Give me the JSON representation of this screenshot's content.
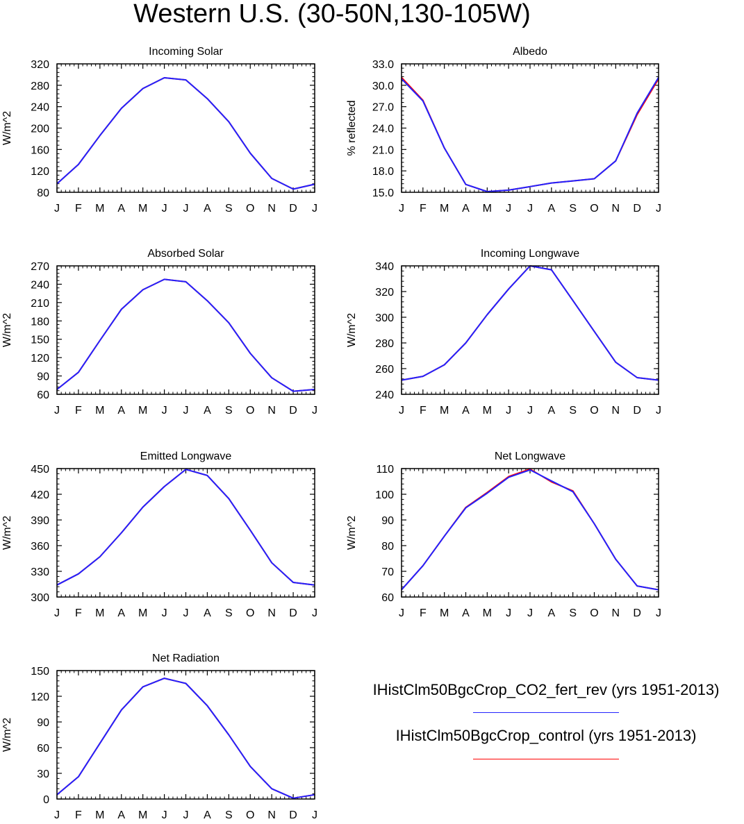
{
  "figure": {
    "title": "Western U.S. (30-50N,130-105W)"
  },
  "legend": [
    {
      "label": "IHistClm50BgcCrop_CO2_fert_rev (yrs 1951-2013)",
      "color": "#2222ff"
    },
    {
      "label": "IHistClm50BgcCrop_control (yrs 1951-2013)",
      "color": "#ff0000"
    }
  ],
  "chart_data": [
    {
      "type": "line",
      "title": "Incoming Solar",
      "ylabel": "W/m^2",
      "xlabel": "",
      "categories": [
        "J",
        "F",
        "M",
        "A",
        "M",
        "J",
        "J",
        "A",
        "S",
        "O",
        "N",
        "D",
        "J"
      ],
      "ylim": [
        80,
        320
      ],
      "yticks": [
        "80",
        "120",
        "160",
        "200",
        "240",
        "280",
        "320"
      ],
      "series": [
        {
          "color": "#ff0000",
          "values": [
            96,
            132,
            186,
            237,
            274,
            294,
            290,
            255,
            212,
            153,
            106,
            86,
            95
          ]
        },
        {
          "color": "#2222ff",
          "values": [
            96,
            132,
            186,
            237,
            274,
            294,
            290,
            255,
            212,
            153,
            106,
            86,
            95
          ]
        }
      ]
    },
    {
      "type": "line",
      "title": "Albedo",
      "ylabel": "% reflected",
      "xlabel": "",
      "categories": [
        "J",
        "F",
        "M",
        "A",
        "M",
        "J",
        "J",
        "A",
        "S",
        "O",
        "N",
        "D",
        "J"
      ],
      "ylim": [
        15,
        33
      ],
      "yticks": [
        "15.0",
        "18.0",
        "21.0",
        "24.0",
        "27.0",
        "30.0",
        "33.0"
      ],
      "series": [
        {
          "color": "#ff0000",
          "values": [
            31.1,
            27.9,
            21.2,
            16.1,
            15.1,
            15.3,
            15.8,
            16.3,
            16.6,
            16.9,
            19.4,
            25.9,
            30.9
          ]
        },
        {
          "color": "#2222ff",
          "values": [
            30.9,
            27.8,
            21.2,
            16.1,
            15.1,
            15.3,
            15.8,
            16.3,
            16.6,
            16.9,
            19.4,
            26.1,
            31.1
          ]
        }
      ]
    },
    {
      "type": "line",
      "title": "Absorbed Solar",
      "ylabel": "W/m^2",
      "xlabel": "",
      "categories": [
        "J",
        "F",
        "M",
        "A",
        "M",
        "J",
        "J",
        "A",
        "S",
        "O",
        "N",
        "D",
        "J"
      ],
      "ylim": [
        60,
        270
      ],
      "yticks": [
        "60",
        "90",
        "120",
        "150",
        "180",
        "210",
        "240",
        "270"
      ],
      "series": [
        {
          "color": "#ff0000",
          "values": [
            68,
            96,
            148,
            199,
            231,
            248,
            244,
            213,
            177,
            127,
            87,
            65,
            68
          ]
        },
        {
          "color": "#2222ff",
          "values": [
            68,
            96,
            148,
            199,
            231,
            248,
            244,
            213,
            177,
            127,
            87,
            65,
            68
          ]
        }
      ]
    },
    {
      "type": "line",
      "title": "Incoming Longwave",
      "ylabel": "W/m^2",
      "xlabel": "",
      "categories": [
        "J",
        "F",
        "M",
        "A",
        "M",
        "J",
        "J",
        "A",
        "S",
        "O",
        "N",
        "D",
        "J"
      ],
      "ylim": [
        240,
        340
      ],
      "yticks": [
        "240",
        "260",
        "280",
        "300",
        "320",
        "340"
      ],
      "series": [
        {
          "color": "#ff0000",
          "values": [
            251,
            254,
            263,
            280,
            302,
            322,
            340,
            337,
            313,
            289,
            265,
            253,
            251
          ]
        },
        {
          "color": "#2222ff",
          "values": [
            251,
            254,
            263,
            280,
            302,
            322,
            340,
            337,
            313,
            289,
            265,
            253,
            251
          ]
        }
      ]
    },
    {
      "type": "line",
      "title": "Emitted Longwave",
      "ylabel": "W/m^2",
      "xlabel": "",
      "categories": [
        "J",
        "F",
        "M",
        "A",
        "M",
        "J",
        "J",
        "A",
        "S",
        "O",
        "N",
        "D",
        "J"
      ],
      "ylim": [
        300,
        450
      ],
      "yticks": [
        "300",
        "330",
        "360",
        "390",
        "420",
        "450"
      ],
      "series": [
        {
          "color": "#ff0000",
          "values": [
            314,
            327,
            347,
            375,
            405,
            429,
            449,
            442,
            415,
            378,
            340,
            317,
            314
          ]
        },
        {
          "color": "#2222ff",
          "values": [
            314,
            327,
            347,
            375,
            405,
            429,
            449,
            442,
            415,
            378,
            340,
            317,
            314
          ]
        }
      ]
    },
    {
      "type": "line",
      "title": "Net Longwave",
      "ylabel": "W/m^2",
      "xlabel": "",
      "categories": [
        "J",
        "F",
        "M",
        "A",
        "M",
        "J",
        "J",
        "A",
        "S",
        "O",
        "N",
        "D",
        "J"
      ],
      "ylim": [
        60,
        110
      ],
      "yticks": [
        "60",
        "70",
        "80",
        "90",
        "100",
        "110"
      ],
      "series": [
        {
          "color": "#ff0000",
          "values": [
            62.8,
            72.2,
            83.7,
            94.9,
            100.7,
            106.9,
            109.8,
            104.8,
            101.3,
            88.5,
            74.7,
            64.3,
            62.8
          ]
        },
        {
          "color": "#2222ff",
          "values": [
            62.8,
            72.2,
            83.7,
            94.7,
            100.4,
            106.6,
            109.5,
            105.2,
            101.0,
            88.5,
            74.7,
            64.3,
            62.8
          ]
        }
      ]
    },
    {
      "type": "line",
      "title": "Net Radiation",
      "ylabel": "W/m^2",
      "xlabel": "",
      "categories": [
        "J",
        "F",
        "M",
        "A",
        "M",
        "J",
        "J",
        "A",
        "S",
        "O",
        "N",
        "D",
        "J"
      ],
      "ylim": [
        0,
        150
      ],
      "yticks": [
        "0",
        "30",
        "60",
        "90",
        "120",
        "150"
      ],
      "series": [
        {
          "color": "#ff0000",
          "values": [
            5,
            26,
            65,
            104,
            131,
            141,
            135,
            109,
            75,
            38,
            12,
            1,
            5
          ]
        },
        {
          "color": "#2222ff",
          "values": [
            5,
            26,
            65,
            104,
            131,
            141,
            135,
            109,
            75,
            38,
            12,
            1,
            5
          ]
        }
      ]
    }
  ]
}
